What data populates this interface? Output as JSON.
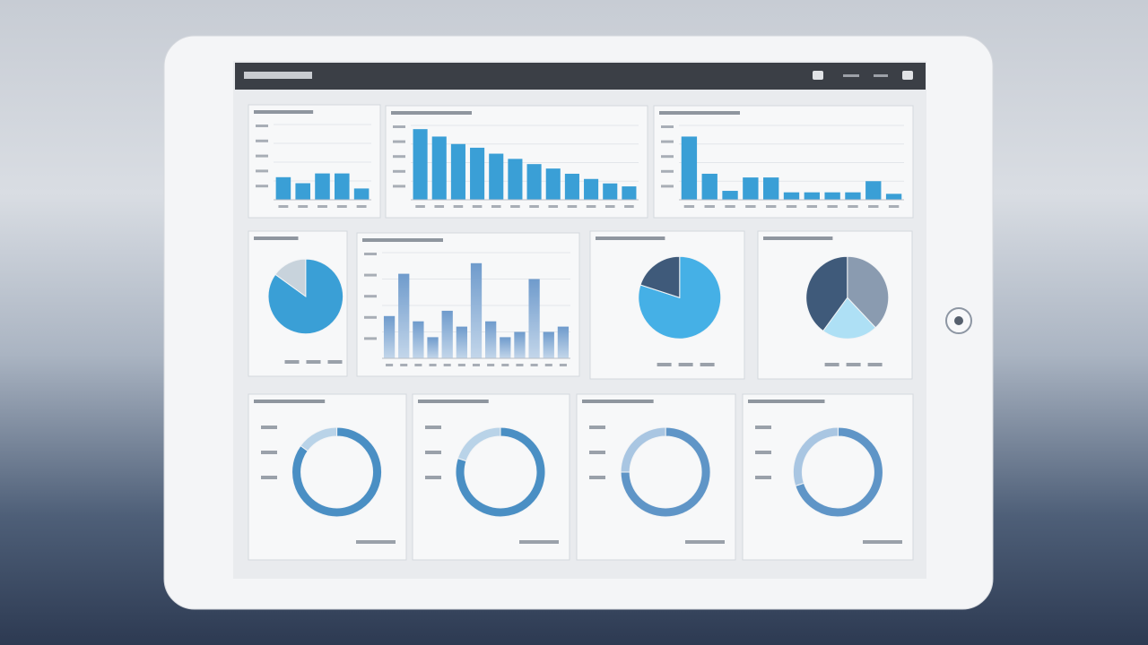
{
  "panels": [
    {
      "type": "bar",
      "color": "#3a9fd6",
      "values": [
        30,
        22,
        35,
        35,
        15
      ]
    },
    {
      "type": "bar",
      "color": "#3a9fd6",
      "values": [
        95,
        85,
        75,
        70,
        62,
        55,
        48,
        42,
        35,
        28,
        22,
        18
      ]
    },
    {
      "type": "bar",
      "color": "#3a9fd6",
      "values": [
        85,
        35,
        12,
        30,
        30,
        10,
        10,
        10,
        10,
        25,
        8
      ]
    },
    {
      "type": "pie",
      "colors": [
        "#3a9fd6",
        "#c8d3dc"
      ],
      "values": [
        85,
        15
      ]
    },
    {
      "type": "bar",
      "color": "#7fa6cf",
      "values": [
        40,
        80,
        35,
        20,
        45,
        30,
        90,
        35,
        20,
        25,
        75,
        25,
        30
      ]
    },
    {
      "type": "pie",
      "colors": [
        "#45b0e6",
        "#3f5a7a"
      ],
      "values": [
        80,
        20
      ]
    },
    {
      "type": "pie",
      "colors": [
        "#8a9bb0",
        "#aee0f5",
        "#3f5a7a"
      ],
      "values": [
        38,
        22,
        40
      ]
    },
    {
      "type": "donut",
      "colors": [
        "#4a8fc4",
        "#b9d3e8"
      ],
      "values": [
        85,
        15
      ]
    },
    {
      "type": "donut",
      "colors": [
        "#4a8fc4",
        "#b9d3e8"
      ],
      "values": [
        80,
        20
      ]
    },
    {
      "type": "donut",
      "colors": [
        "#5f95c7",
        "#a9c6e2"
      ],
      "values": [
        75,
        25
      ]
    },
    {
      "type": "donut",
      "colors": [
        "#5f95c7",
        "#a9c6e2"
      ],
      "values": [
        70,
        30
      ]
    }
  ]
}
